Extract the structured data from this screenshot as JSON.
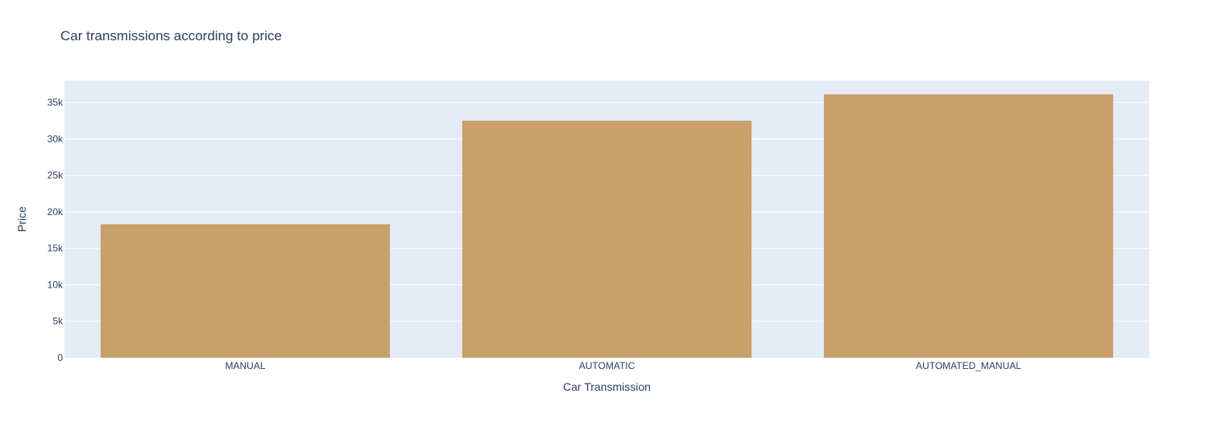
{
  "chart_data": {
    "type": "bar",
    "title": "Car transmissions according to price",
    "xlabel": "Car Transmission",
    "ylabel": "Price",
    "categories": [
      "MANUAL",
      "AUTOMATIC",
      "AUTOMATED_MANUAL"
    ],
    "values": [
      18300,
      32500,
      36100
    ],
    "ylim": [
      0,
      38000
    ],
    "yticks": [
      0,
      5000,
      10000,
      15000,
      20000,
      25000,
      30000,
      35000
    ],
    "ytick_labels": [
      "0",
      "5k",
      "10k",
      "15k",
      "20k",
      "25k",
      "30k",
      "35k"
    ],
    "grid": true,
    "legend": "none",
    "colors": {
      "bar": "#c8a06b",
      "plot_background": "#e5ecf6",
      "text": "#2a3f5f"
    }
  }
}
